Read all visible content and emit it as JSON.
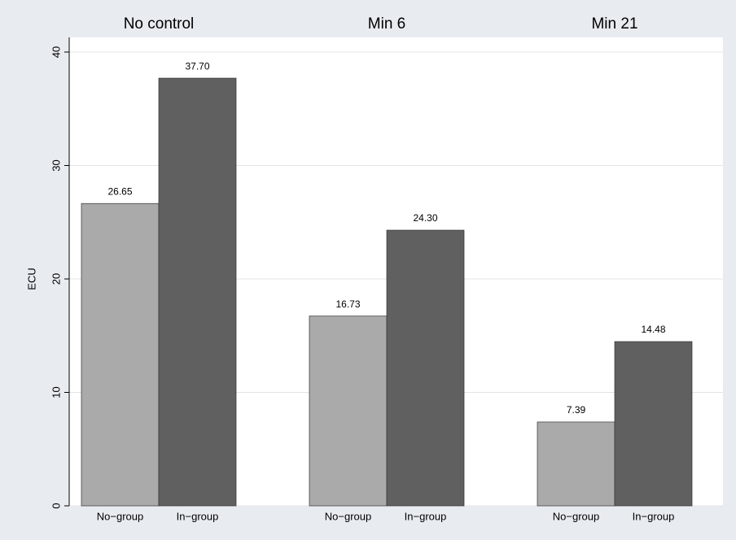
{
  "chart_data": {
    "type": "bar",
    "y_label": "ECU",
    "categories": [
      "No control",
      "Min 6",
      "Min 21"
    ],
    "series": [
      {
        "name": "No−group",
        "color": "#aaaaaa",
        "values": [
          26.65,
          16.73,
          7.39
        ],
        "value_labels": [
          "26.65",
          "16.73",
          "7.39"
        ]
      },
      {
        "name": "In−group",
        "color": "#606060",
        "values": [
          37.7,
          24.3,
          14.48
        ],
        "value_labels": [
          "37.70",
          "24.30",
          "14.48"
        ]
      }
    ],
    "ylim": [
      0,
      40
    ],
    "yticks": [
      0,
      10,
      20,
      30,
      40
    ],
    "grid": true
  }
}
